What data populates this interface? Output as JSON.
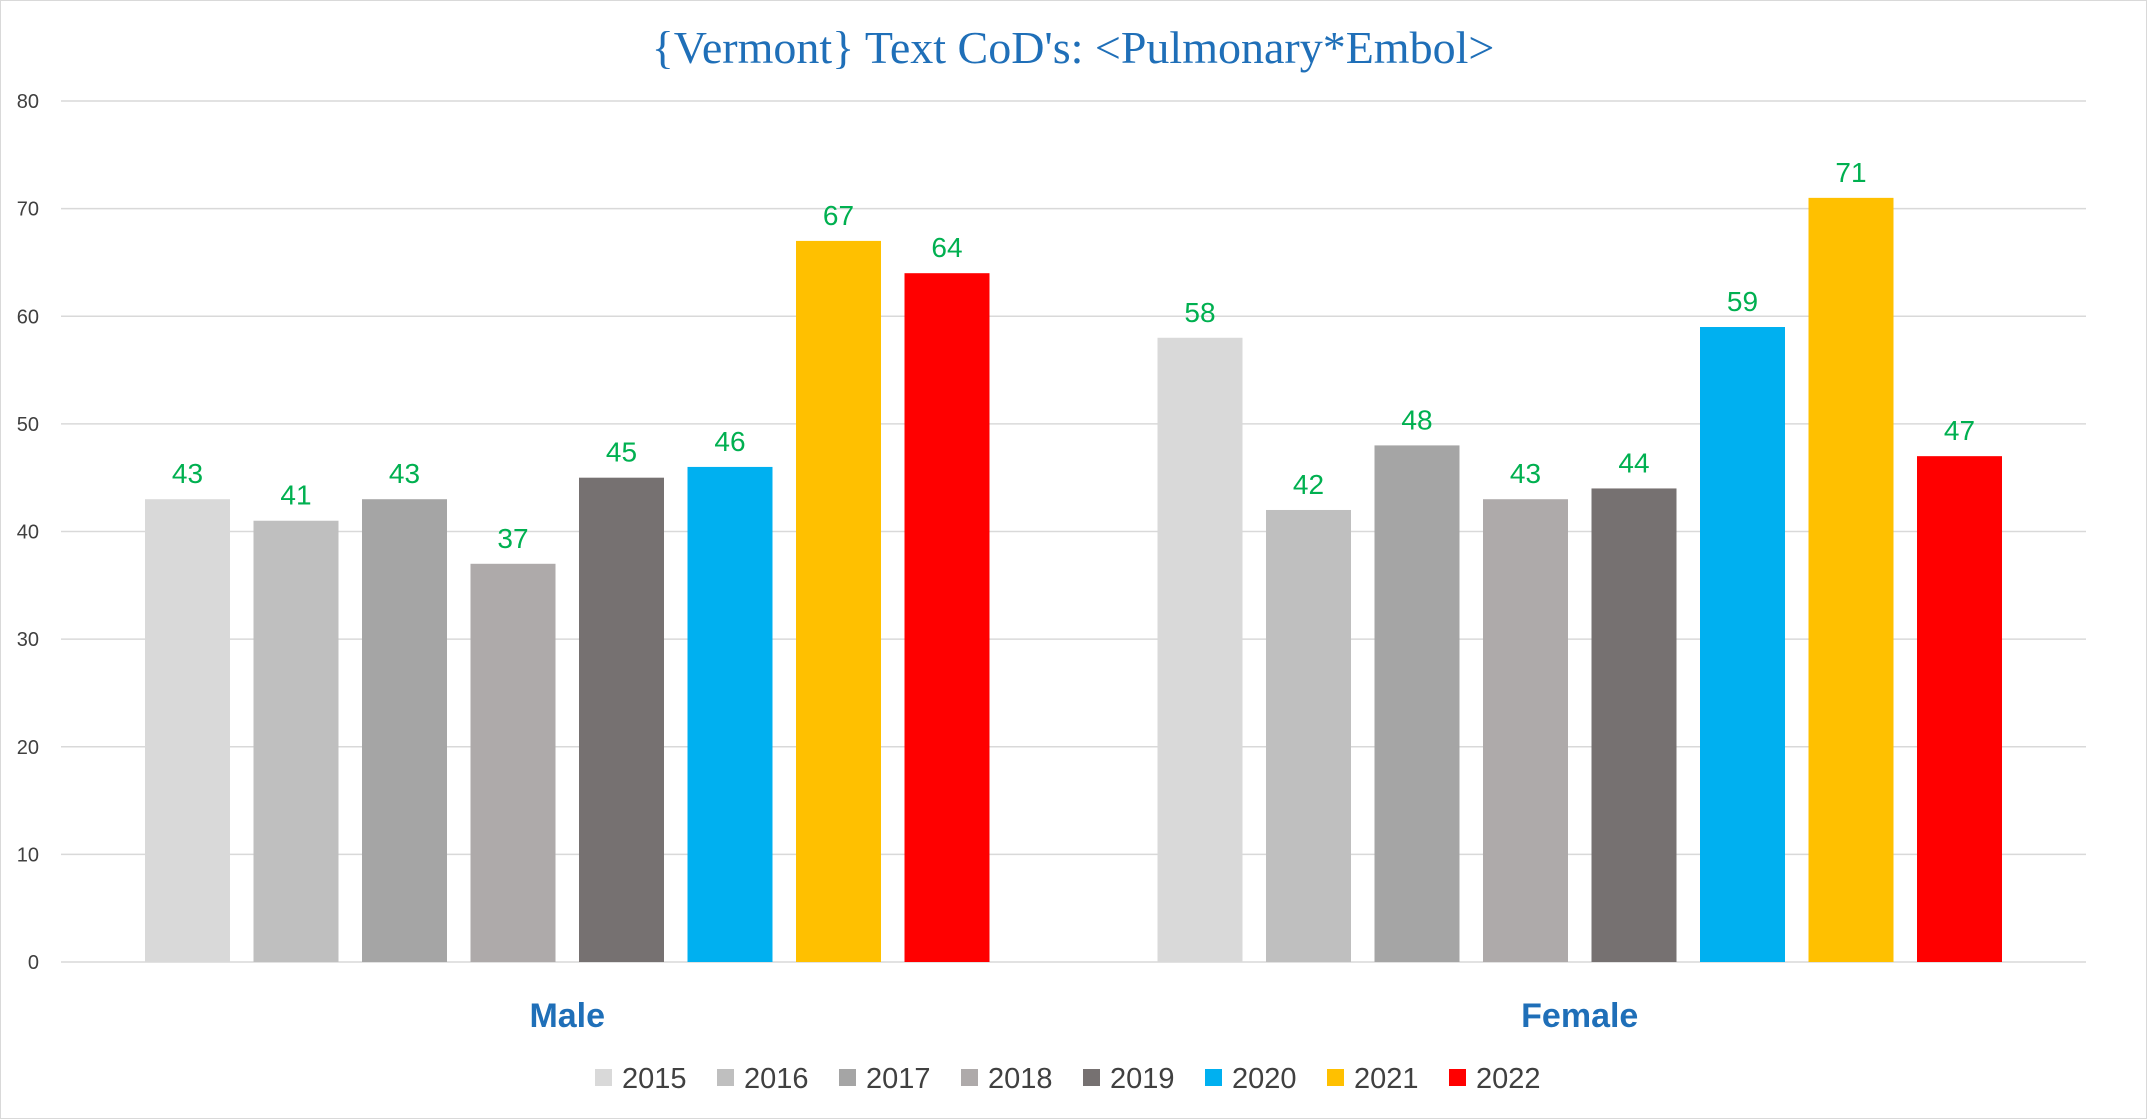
{
  "chart_data": {
    "type": "bar",
    "title": "{Vermont}   Text CoD's: <Pulmonary*Embol>",
    "xlabel": "",
    "ylabel": "",
    "ylim": [
      0,
      80
    ],
    "yticks": [
      0,
      10,
      20,
      30,
      40,
      50,
      60,
      70,
      80
    ],
    "categories": [
      "Male",
      "Female"
    ],
    "series": [
      {
        "name": "2015",
        "color": "#d9d9d9",
        "values": [
          43,
          58
        ]
      },
      {
        "name": "2016",
        "color": "#bfbfbf",
        "values": [
          41,
          42
        ]
      },
      {
        "name": "2017",
        "color": "#a5a5a5",
        "values": [
          43,
          48
        ]
      },
      {
        "name": "2018",
        "color": "#aeaaaa",
        "values": [
          37,
          43
        ]
      },
      {
        "name": "2019",
        "color": "#767171",
        "values": [
          45,
          44
        ]
      },
      {
        "name": "2020",
        "color": "#00b0f0",
        "values": [
          46,
          59
        ]
      },
      {
        "name": "2021",
        "color": "#ffc000",
        "values": [
          67,
          71
        ]
      },
      {
        "name": "2022",
        "color": "#ff0000",
        "values": [
          64,
          47
        ]
      }
    ],
    "data_labels": true,
    "data_label_color": "#00b050",
    "grid": true,
    "legend_position": "bottom"
  }
}
